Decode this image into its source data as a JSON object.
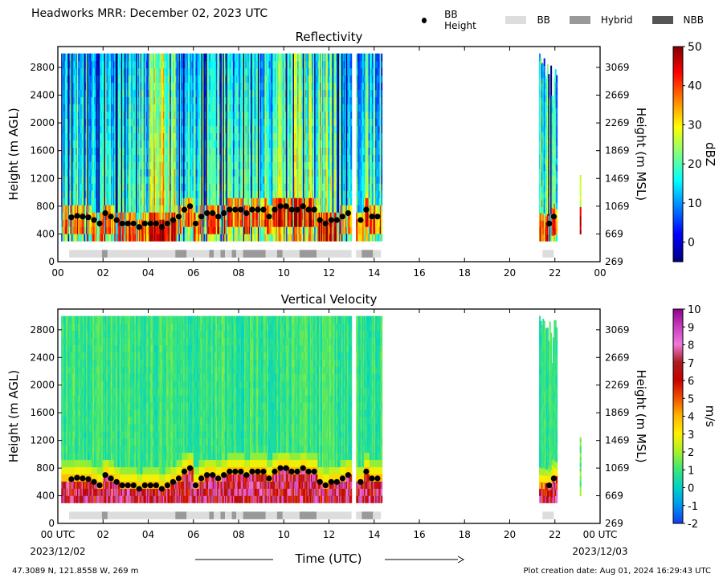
{
  "suptitle": "Headworks MRR:  December 02, 2023 UTC",
  "legend": [
    {
      "label": "BB Height",
      "kind": "dot",
      "color": "#000000"
    },
    {
      "label": "BB",
      "kind": "swatch",
      "color": "#dddddd"
    },
    {
      "label": "Hybrid",
      "kind": "swatch",
      "color": "#999999"
    },
    {
      "label": "NBB",
      "kind": "swatch",
      "color": "#555555"
    }
  ],
  "footer": {
    "location": "47.3089 N, 121.8558 W, 269 m",
    "created": "Plot creation date: Aug 01, 2024 16:29:43 UTC",
    "date_start": "2023/12/02",
    "date_end": "2023/12/03",
    "x_label": "Time (UTC)"
  },
  "chart_data": [
    {
      "type": "heatmap",
      "title": "Reflectivity",
      "ylabel": "Height (m AGL)",
      "ylabel_right": "Height (m MSL)",
      "colorbar_label": "dBZ",
      "colorbar_ticks": [
        "50",
        "40",
        "30",
        "20",
        "10",
        "0"
      ],
      "colorbar_range": [
        -5,
        50
      ],
      "xlim": [
        0,
        24
      ],
      "ylim": [
        0,
        3100
      ],
      "x_ticks": [
        "00",
        "02",
        "04",
        "06",
        "08",
        "10",
        "12",
        "14",
        "16",
        "18",
        "20",
        "22",
        "00"
      ],
      "y_ticks": [
        "0",
        "400",
        "800",
        "1200",
        "1600",
        "2000",
        "2400",
        "2800"
      ],
      "y_ticks_right": [
        "269",
        "669",
        "1069",
        "1469",
        "1869",
        "2269",
        "2669",
        "3069"
      ],
      "data_extent_hours": [
        [
          0.15,
          13.0
        ],
        [
          13.2,
          14.35
        ],
        [
          21.3,
          22.1
        ],
        [
          23.1,
          23.15
        ]
      ],
      "bb_class_segments": [
        {
          "start": 0.5,
          "end": 1.95,
          "class": "BB"
        },
        {
          "start": 1.95,
          "end": 2.2,
          "class": "Hybrid"
        },
        {
          "start": 2.2,
          "end": 5.2,
          "class": "BB"
        },
        {
          "start": 5.2,
          "end": 5.7,
          "class": "Hybrid"
        },
        {
          "start": 5.7,
          "end": 6.7,
          "class": "BB"
        },
        {
          "start": 6.7,
          "end": 6.9,
          "class": "Hybrid"
        },
        {
          "start": 6.9,
          "end": 7.2,
          "class": "BB"
        },
        {
          "start": 7.2,
          "end": 7.4,
          "class": "Hybrid"
        },
        {
          "start": 7.4,
          "end": 7.7,
          "class": "BB"
        },
        {
          "start": 7.7,
          "end": 7.9,
          "class": "Hybrid"
        },
        {
          "start": 7.9,
          "end": 8.2,
          "class": "BB"
        },
        {
          "start": 8.2,
          "end": 9.2,
          "class": "Hybrid"
        },
        {
          "start": 9.2,
          "end": 9.7,
          "class": "BB"
        },
        {
          "start": 9.7,
          "end": 9.95,
          "class": "Hybrid"
        },
        {
          "start": 9.95,
          "end": 10.7,
          "class": "BB"
        },
        {
          "start": 10.7,
          "end": 11.45,
          "class": "Hybrid"
        },
        {
          "start": 11.45,
          "end": 13.0,
          "class": "BB"
        },
        {
          "start": 13.2,
          "end": 13.45,
          "class": "BB"
        },
        {
          "start": 13.45,
          "end": 13.95,
          "class": "Hybrid"
        },
        {
          "start": 13.95,
          "end": 14.3,
          "class": "BB"
        },
        {
          "start": 21.45,
          "end": 21.95,
          "class": "BB"
        }
      ],
      "bb_height": {
        "x": [
          0.6,
          0.85,
          1.1,
          1.35,
          1.6,
          1.85,
          2.1,
          2.35,
          2.6,
          2.85,
          3.1,
          3.35,
          3.6,
          3.85,
          4.1,
          4.35,
          4.6,
          4.85,
          5.1,
          5.35,
          5.6,
          5.85,
          6.1,
          6.35,
          6.6,
          6.85,
          7.1,
          7.35,
          7.6,
          7.85,
          8.1,
          8.35,
          8.6,
          8.85,
          9.1,
          9.35,
          9.6,
          9.85,
          10.1,
          10.35,
          10.6,
          10.85,
          11.1,
          11.35,
          11.6,
          11.85,
          12.1,
          12.35,
          12.6,
          12.85,
          13.4,
          13.65,
          13.9,
          14.15,
          21.75,
          21.95
        ],
        "y": [
          640,
          660,
          650,
          640,
          600,
          550,
          700,
          650,
          600,
          550,
          550,
          550,
          500,
          550,
          550,
          550,
          500,
          550,
          600,
          650,
          750,
          800,
          550,
          650,
          700,
          700,
          650,
          700,
          750,
          750,
          750,
          700,
          750,
          750,
          750,
          650,
          750,
          800,
          800,
          750,
          750,
          800,
          750,
          750,
          600,
          550,
          600,
          600,
          650,
          700,
          600,
          750,
          650,
          650,
          550,
          650
        ]
      }
    },
    {
      "type": "heatmap",
      "title": "Vertical Velocity",
      "ylabel": "Height (m AGL)",
      "ylabel_right": "Height (m MSL)",
      "colorbar_label": "m/s",
      "colorbar_ticks": [
        "10",
        "9",
        "8",
        "7",
        "6",
        "5",
        "4",
        "3",
        "2",
        "1",
        "0",
        "-1",
        "-2"
      ],
      "colorbar_range": [
        -2,
        10
      ],
      "xlim": [
        0,
        24
      ],
      "ylim": [
        0,
        3100
      ],
      "x_ticks": [
        "00 UTC",
        "02",
        "04",
        "06",
        "08",
        "10",
        "12",
        "14",
        "16",
        "18",
        "20",
        "22",
        "00 UTC"
      ],
      "y_ticks": [
        "0",
        "400",
        "800",
        "1200",
        "1600",
        "2000",
        "2400",
        "2800"
      ],
      "y_ticks_right": [
        "269",
        "669",
        "1069",
        "1469",
        "1869",
        "2269",
        "2669",
        "3069"
      ]
    }
  ]
}
